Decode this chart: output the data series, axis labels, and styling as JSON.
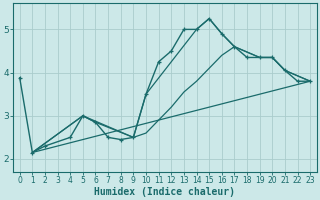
{
  "xlabel": "Humidex (Indice chaleur)",
  "background_color": "#cce8e8",
  "grid_color": "#aacccc",
  "line_color": "#1a6b6b",
  "xlim": [
    -0.5,
    23.5
  ],
  "ylim": [
    1.7,
    5.6
  ],
  "yticks": [
    2,
    3,
    4,
    5
  ],
  "xticks": [
    0,
    1,
    2,
    3,
    4,
    5,
    6,
    7,
    8,
    9,
    10,
    11,
    12,
    13,
    14,
    15,
    16,
    17,
    18,
    19,
    20,
    21,
    22,
    23
  ],
  "main_line": {
    "x": [
      0,
      1,
      2,
      4,
      5,
      6,
      7,
      8,
      9,
      10,
      11,
      12,
      13,
      14,
      15,
      16,
      17,
      18,
      19,
      20,
      21,
      22,
      23
    ],
    "y": [
      3.88,
      2.15,
      2.3,
      2.5,
      3.0,
      2.85,
      2.5,
      2.45,
      2.5,
      3.5,
      4.25,
      4.5,
      5.0,
      5.0,
      5.25,
      4.9,
      4.6,
      4.35,
      4.35,
      4.35,
      4.05,
      3.8,
      3.8
    ]
  },
  "trend_lines": [
    {
      "x": [
        1,
        5,
        6,
        9,
        10,
        14,
        15,
        16,
        17,
        19,
        20,
        21,
        23
      ],
      "y": [
        2.15,
        3.0,
        2.85,
        2.5,
        3.5,
        5.0,
        5.25,
        4.9,
        4.6,
        4.35,
        4.35,
        4.05,
        3.8
      ]
    },
    {
      "x": [
        1,
        5,
        9,
        10,
        11,
        12,
        13,
        14,
        15,
        16,
        17,
        19,
        20,
        21,
        23
      ],
      "y": [
        2.15,
        3.0,
        2.5,
        2.6,
        2.9,
        3.2,
        3.55,
        3.8,
        4.1,
        4.4,
        4.6,
        4.35,
        4.35,
        4.05,
        3.8
      ]
    },
    {
      "x": [
        1,
        23
      ],
      "y": [
        2.15,
        3.8
      ]
    }
  ]
}
